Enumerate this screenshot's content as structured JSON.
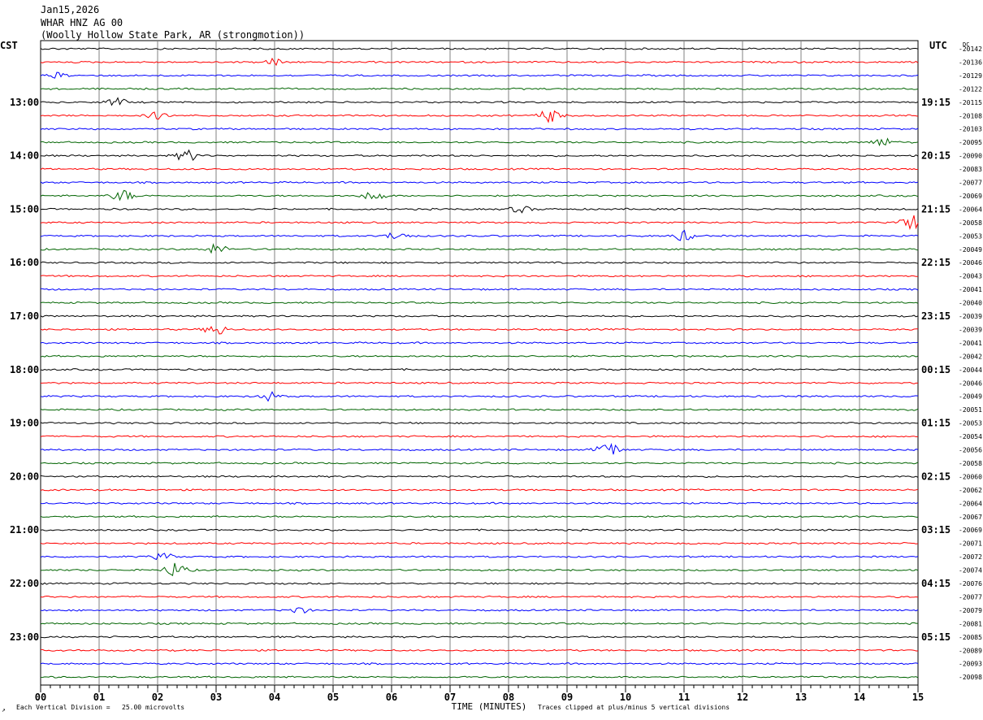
{
  "header": {
    "date": "Jan15,2026",
    "station": "WHAR HNZ AG 00",
    "location": "(Woolly Hollow State Park, AR (strongmotion))"
  },
  "labels": {
    "left_tz": "CST",
    "right_tz": "UTC",
    "dc": "DC"
  },
  "footer": {
    "scale": "Each Vertical Division =   25.00 microvolts",
    "xlabel": "TIME (MINUTES)",
    "clip": "Traces clipped at plus/minus 5 vertical divisions"
  },
  "colors": {
    "trace_cycle": [
      "#000000",
      "#ff0000",
      "#0000ff",
      "#006400"
    ],
    "grid": "#808080"
  },
  "chart_data": {
    "type": "line",
    "title": "",
    "xlabel": "TIME (MINUTES)",
    "x_ticks": [
      "00",
      "01",
      "02",
      "03",
      "04",
      "05",
      "06",
      "07",
      "08",
      "09",
      "10",
      "11",
      "12",
      "13",
      "14",
      "15"
    ],
    "xlim": [
      0,
      15
    ],
    "trace_count": 48,
    "left_hour_labels": [
      "13:00",
      "14:00",
      "15:00",
      "16:00",
      "17:00",
      "18:00",
      "19:00",
      "20:00",
      "21:00",
      "22:00",
      "23:00"
    ],
    "right_hour_labels": [
      "19:15",
      "20:15",
      "21:15",
      "22:15",
      "23:15",
      "00:15",
      "01:15",
      "02:15",
      "03:15",
      "04:15",
      "05:15"
    ],
    "dc_offsets": [
      "-20142",
      "-20136",
      "-20129",
      "-20122",
      "-20115",
      "-20108",
      "-20103",
      "-20095",
      "-20090",
      "-20083",
      "-20077",
      "-20069",
      "-20064",
      "-20058",
      "-20053",
      "-20049",
      "-20046",
      "-20043",
      "-20041",
      "-20040",
      "-20039",
      "-20039",
      "-20041",
      "-20042",
      "-20044",
      "-20046",
      "-20049",
      "-20051",
      "-20053",
      "-20054",
      "-20056",
      "-20058",
      "-20060",
      "-20062",
      "-20064",
      "-20067",
      "-20069",
      "-20071",
      "-20072",
      "-20074",
      "-20076",
      "-20077",
      "-20079",
      "-20081",
      "-20085",
      "-20089",
      "-20093",
      "-20098"
    ],
    "events": [
      {
        "trace": 1,
        "minute": 4.0,
        "amplitude": 4
      },
      {
        "trace": 2,
        "minute": 0.3,
        "amplitude": 3
      },
      {
        "trace": 4,
        "minute": 1.3,
        "amplitude": 5
      },
      {
        "trace": 5,
        "minute": 2.0,
        "amplitude": 4
      },
      {
        "trace": 5,
        "minute": 8.7,
        "amplitude": 8
      },
      {
        "trace": 7,
        "minute": 14.4,
        "amplitude": 5
      },
      {
        "trace": 8,
        "minute": 2.5,
        "amplitude": 7
      },
      {
        "trace": 11,
        "minute": 1.4,
        "amplitude": 7
      },
      {
        "trace": 11,
        "minute": 5.7,
        "amplitude": 6
      },
      {
        "trace": 12,
        "minute": 8.2,
        "amplitude": 4
      },
      {
        "trace": 13,
        "minute": 14.9,
        "amplitude": 10
      },
      {
        "trace": 14,
        "minute": 6.1,
        "amplitude": 5
      },
      {
        "trace": 14,
        "minute": 11.0,
        "amplitude": 6
      },
      {
        "trace": 15,
        "minute": 3.0,
        "amplitude": 6
      },
      {
        "trace": 21,
        "minute": 3.0,
        "amplitude": 7
      },
      {
        "trace": 26,
        "minute": 3.9,
        "amplitude": 5
      },
      {
        "trace": 30,
        "minute": 9.7,
        "amplitude": 10
      },
      {
        "trace": 38,
        "minute": 2.1,
        "amplitude": 4
      },
      {
        "trace": 39,
        "minute": 2.3,
        "amplitude": 9
      },
      {
        "trace": 42,
        "minute": 4.4,
        "amplitude": 4
      }
    ]
  }
}
